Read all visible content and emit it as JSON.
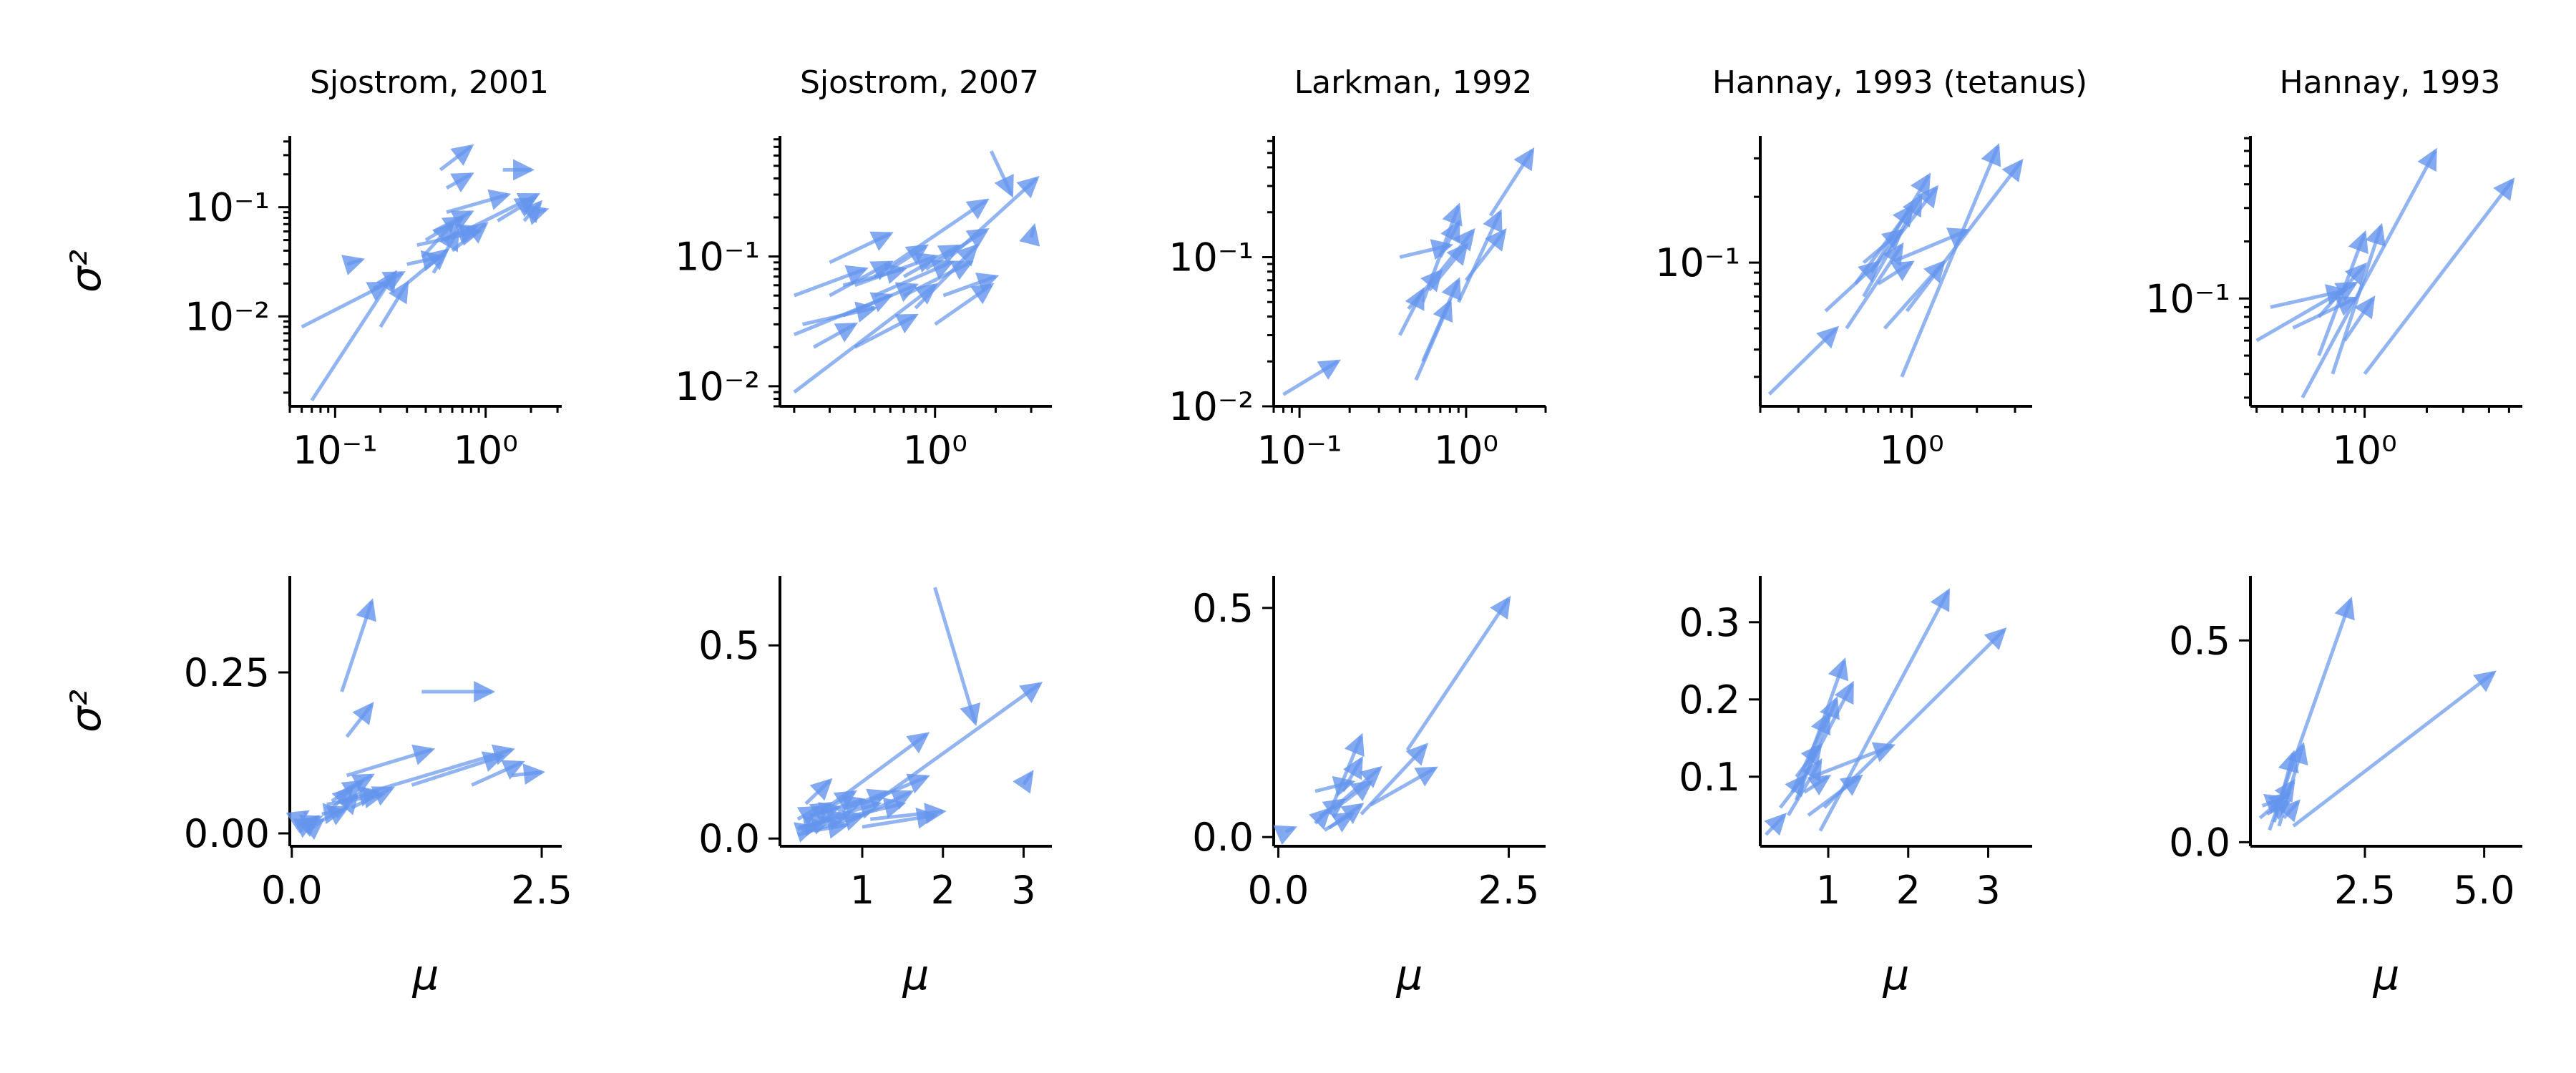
{
  "figure": {
    "ylabel": "σ²",
    "xlabel": "μ",
    "arrow_color": "#6495ED"
  },
  "chart_data": [
    {
      "type": "arrows",
      "row": "log",
      "title": "Sjostrom, 2001",
      "xscale": "log",
      "yscale": "log",
      "xlim": [
        0.05,
        3.2
      ],
      "ylim": [
        0.0015,
        0.45
      ],
      "xticks": [
        {
          "v": 0.1,
          "label": "10⁻¹"
        },
        {
          "v": 1,
          "label": "10⁰"
        }
      ],
      "yticks": [
        {
          "v": 0.01,
          "label": "10⁻²"
        },
        {
          "v": 0.1,
          "label": "10⁻¹"
        }
      ],
      "arrows": [
        [
          0.06,
          0.008,
          0.22,
          0.02
        ],
        [
          0.07,
          0.0017,
          0.25,
          0.025
        ],
        [
          0.12,
          0.03,
          0.15,
          0.033
        ],
        [
          0.2,
          0.008,
          0.3,
          0.02
        ],
        [
          0.18,
          0.018,
          0.28,
          0.025
        ],
        [
          0.3,
          0.02,
          0.55,
          0.04
        ],
        [
          0.38,
          0.035,
          0.6,
          0.07
        ],
        [
          0.4,
          0.05,
          0.7,
          0.08
        ],
        [
          0.45,
          0.06,
          0.8,
          0.09
        ],
        [
          0.5,
          0.05,
          0.85,
          0.065
        ],
        [
          0.55,
          0.09,
          1.4,
          0.13
        ],
        [
          0.6,
          0.04,
          1.0,
          0.07
        ],
        [
          0.45,
          0.025,
          0.65,
          0.06
        ],
        [
          0.5,
          0.22,
          0.8,
          0.36
        ],
        [
          1.3,
          0.22,
          2.0,
          0.22
        ],
        [
          1.2,
          0.075,
          2.1,
          0.12
        ],
        [
          0.8,
          0.065,
          2.2,
          0.13
        ],
        [
          1.8,
          0.075,
          2.3,
          0.11
        ],
        [
          2.2,
          0.09,
          2.5,
          0.095
        ],
        [
          0.35,
          0.045,
          0.9,
          0.06
        ],
        [
          0.3,
          0.03,
          0.5,
          0.035
        ],
        [
          0.55,
          0.15,
          0.8,
          0.2
        ]
      ]
    },
    {
      "type": "arrows",
      "row": "log",
      "title": "Sjostrom, 2007",
      "xscale": "log",
      "yscale": "log",
      "xlim": [
        0.17,
        3.8
      ],
      "ylim": [
        0.007,
        0.85
      ],
      "xticks": [
        {
          "v": 1,
          "label": "10⁰"
        }
      ],
      "yticks": [
        {
          "v": 0.01,
          "label": "10⁻²"
        },
        {
          "v": 0.1,
          "label": "10⁻¹"
        }
      ],
      "arrows": [
        [
          0.2,
          0.009,
          1.0,
          0.06
        ],
        [
          0.2,
          0.025,
          0.6,
          0.05
        ],
        [
          0.22,
          0.03,
          0.5,
          0.04
        ],
        [
          0.25,
          0.02,
          0.4,
          0.03
        ],
        [
          0.3,
          0.05,
          0.6,
          0.09
        ],
        [
          0.2,
          0.05,
          0.45,
          0.08
        ],
        [
          0.35,
          0.035,
          0.8,
          0.06
        ],
        [
          0.4,
          0.06,
          1.0,
          0.1
        ],
        [
          0.5,
          0.05,
          1.2,
          0.09
        ],
        [
          0.6,
          0.08,
          0.9,
          0.12
        ],
        [
          0.7,
          0.07,
          1.3,
          0.12
        ],
        [
          0.8,
          0.04,
          1.6,
          0.12
        ],
        [
          0.9,
          0.08,
          1.8,
          0.16
        ],
        [
          1.0,
          0.03,
          1.9,
          0.06
        ],
        [
          1.1,
          0.05,
          2.0,
          0.07
        ],
        [
          0.5,
          0.07,
          1.8,
          0.27
        ],
        [
          1.2,
          0.1,
          3.2,
          0.4
        ],
        [
          1.9,
          0.65,
          2.4,
          0.3
        ],
        [
          3.0,
          0.14,
          3.1,
          0.17
        ],
        [
          0.3,
          0.09,
          0.6,
          0.15
        ],
        [
          0.4,
          0.02,
          0.8,
          0.035
        ],
        [
          0.7,
          0.05,
          1.5,
          0.09
        ],
        [
          0.35,
          0.06,
          0.7,
          0.08
        ]
      ]
    },
    {
      "type": "arrows",
      "row": "log",
      "title": "Larkman, 1992",
      "xscale": "log",
      "yscale": "log",
      "xlim": [
        0.07,
        3.0
      ],
      "ylim": [
        0.01,
        0.65
      ],
      "xticks": [
        {
          "v": 0.1,
          "label": "10⁻¹"
        },
        {
          "v": 1,
          "label": "10⁰"
        }
      ],
      "yticks": [
        {
          "v": 0.01,
          "label": "10⁻²"
        },
        {
          "v": 0.1,
          "label": "10⁻¹"
        }
      ],
      "arrows": [
        [
          0.08,
          0.012,
          0.17,
          0.02
        ],
        [
          0.4,
          0.03,
          0.55,
          0.06
        ],
        [
          0.45,
          0.045,
          0.7,
          0.08
        ],
        [
          0.5,
          0.015,
          0.8,
          0.05
        ],
        [
          0.55,
          0.02,
          0.9,
          0.07
        ],
        [
          0.55,
          0.05,
          0.9,
          0.22
        ],
        [
          0.4,
          0.1,
          0.8,
          0.12
        ],
        [
          0.6,
          0.06,
          1.0,
          0.12
        ],
        [
          0.7,
          0.08,
          1.1,
          0.15
        ],
        [
          0.9,
          0.05,
          1.6,
          0.2
        ],
        [
          1.4,
          0.19,
          2.5,
          0.52
        ],
        [
          1.0,
          0.07,
          1.7,
          0.15
        ],
        [
          0.7,
          0.1,
          0.9,
          0.17
        ]
      ]
    },
    {
      "type": "arrows",
      "row": "log",
      "title": "Hannay, 1993 (tetanus)",
      "xscale": "log",
      "yscale": "log",
      "xlim": [
        0.2,
        3.6
      ],
      "ylim": [
        0.022,
        0.38
      ],
      "xticks": [
        {
          "v": 1,
          "label": "10⁰"
        }
      ],
      "yticks": [
        {
          "v": 0.1,
          "label": "10⁻¹"
        }
      ],
      "arrows": [
        [
          0.22,
          0.025,
          0.45,
          0.05
        ],
        [
          0.4,
          0.06,
          0.7,
          0.1
        ],
        [
          0.5,
          0.05,
          0.9,
          0.12
        ],
        [
          0.55,
          0.08,
          1.0,
          0.18
        ],
        [
          0.6,
          0.07,
          1.1,
          0.2
        ],
        [
          0.65,
          0.09,
          1.2,
          0.25
        ],
        [
          0.7,
          0.1,
          1.3,
          0.22
        ],
        [
          0.75,
          0.05,
          1.4,
          0.1
        ],
        [
          0.8,
          0.1,
          1.8,
          0.14
        ],
        [
          0.9,
          0.03,
          2.5,
          0.34
        ],
        [
          0.95,
          0.06,
          3.2,
          0.29
        ],
        [
          0.6,
          0.1,
          0.9,
          0.14
        ],
        [
          0.7,
          0.08,
          1.0,
          0.1
        ]
      ]
    },
    {
      "type": "arrows",
      "row": "log",
      "title": "Hannay, 1993",
      "xscale": "log",
      "yscale": "log",
      "xlim": [
        0.28,
        5.8
      ],
      "ylim": [
        0.027,
        0.72
      ],
      "xticks": [
        {
          "v": 1,
          "label": "10⁰"
        }
      ],
      "yticks": [
        {
          "v": 0.1,
          "label": "10⁻¹"
        }
      ],
      "arrows": [
        [
          0.3,
          0.06,
          0.9,
          0.12
        ],
        [
          0.35,
          0.09,
          0.8,
          0.11
        ],
        [
          0.45,
          0.07,
          0.9,
          0.1
        ],
        [
          0.5,
          0.03,
          2.2,
          0.6
        ],
        [
          0.6,
          0.05,
          1.0,
          0.22
        ],
        [
          0.7,
          0.04,
          1.2,
          0.24
        ],
        [
          0.8,
          0.06,
          1.1,
          0.1
        ],
        [
          1.0,
          0.04,
          5.2,
          0.42
        ],
        [
          0.6,
          0.08,
          1.0,
          0.15
        ]
      ]
    },
    {
      "type": "arrows",
      "row": "linear",
      "title": "",
      "xscale": "linear",
      "yscale": "linear",
      "xlim": [
        -0.02,
        2.7
      ],
      "ylim": [
        -0.02,
        0.4
      ],
      "xticks": [
        {
          "v": 0,
          "label": "0.0"
        },
        {
          "v": 2.5,
          "label": "2.5"
        }
      ],
      "yticks": [
        {
          "v": 0,
          "label": "0.00"
        },
        {
          "v": 0.25,
          "label": "0.25"
        }
      ],
      "arrows": [
        [
          0.06,
          0.008,
          0.22,
          0.02
        ],
        [
          0.07,
          0.0017,
          0.25,
          0.025
        ],
        [
          0.12,
          0.03,
          0.15,
          0.033
        ],
        [
          0.2,
          0.008,
          0.3,
          0.02
        ],
        [
          0.18,
          0.018,
          0.28,
          0.025
        ],
        [
          0.3,
          0.02,
          0.55,
          0.04
        ],
        [
          0.38,
          0.035,
          0.6,
          0.07
        ],
        [
          0.4,
          0.05,
          0.7,
          0.08
        ],
        [
          0.45,
          0.06,
          0.8,
          0.09
        ],
        [
          0.5,
          0.05,
          0.85,
          0.065
        ],
        [
          0.55,
          0.09,
          1.4,
          0.13
        ],
        [
          0.6,
          0.04,
          1.0,
          0.07
        ],
        [
          0.45,
          0.025,
          0.65,
          0.06
        ],
        [
          0.5,
          0.22,
          0.8,
          0.36
        ],
        [
          1.3,
          0.22,
          2.0,
          0.22
        ],
        [
          1.2,
          0.075,
          2.1,
          0.12
        ],
        [
          0.8,
          0.065,
          2.2,
          0.13
        ],
        [
          1.8,
          0.075,
          2.3,
          0.11
        ],
        [
          2.2,
          0.09,
          2.5,
          0.095
        ],
        [
          0.35,
          0.045,
          0.9,
          0.06
        ],
        [
          0.3,
          0.03,
          0.5,
          0.035
        ],
        [
          0.55,
          0.15,
          0.8,
          0.2
        ]
      ]
    },
    {
      "type": "arrows",
      "row": "linear",
      "title": "",
      "xscale": "linear",
      "yscale": "linear",
      "xlim": [
        -0.02,
        3.35
      ],
      "ylim": [
        -0.02,
        0.68
      ],
      "xticks": [
        {
          "v": 1,
          "label": "1"
        },
        {
          "v": 2,
          "label": "2"
        },
        {
          "v": 3,
          "label": "3"
        }
      ],
      "yticks": [
        {
          "v": 0,
          "label": "0.0"
        },
        {
          "v": 0.5,
          "label": "0.5"
        }
      ],
      "arrows": [
        [
          0.2,
          0.009,
          1.0,
          0.06
        ],
        [
          0.2,
          0.025,
          0.6,
          0.05
        ],
        [
          0.22,
          0.03,
          0.5,
          0.04
        ],
        [
          0.25,
          0.02,
          0.4,
          0.03
        ],
        [
          0.3,
          0.05,
          0.6,
          0.09
        ],
        [
          0.2,
          0.05,
          0.45,
          0.08
        ],
        [
          0.35,
          0.035,
          0.8,
          0.06
        ],
        [
          0.4,
          0.06,
          1.0,
          0.1
        ],
        [
          0.5,
          0.05,
          1.2,
          0.09
        ],
        [
          0.6,
          0.08,
          0.9,
          0.12
        ],
        [
          0.7,
          0.07,
          1.3,
          0.12
        ],
        [
          0.8,
          0.04,
          1.6,
          0.12
        ],
        [
          0.9,
          0.08,
          1.8,
          0.16
        ],
        [
          1.0,
          0.03,
          1.9,
          0.06
        ],
        [
          1.1,
          0.05,
          2.0,
          0.07
        ],
        [
          0.5,
          0.07,
          1.8,
          0.27
        ],
        [
          1.2,
          0.1,
          3.2,
          0.4
        ],
        [
          1.9,
          0.65,
          2.4,
          0.3
        ],
        [
          3.0,
          0.14,
          3.1,
          0.17
        ],
        [
          0.3,
          0.09,
          0.6,
          0.15
        ],
        [
          0.4,
          0.02,
          0.8,
          0.035
        ],
        [
          0.7,
          0.05,
          1.5,
          0.09
        ],
        [
          0.35,
          0.06,
          0.7,
          0.08
        ]
      ]
    },
    {
      "type": "arrows",
      "row": "linear",
      "title": "",
      "xscale": "linear",
      "yscale": "linear",
      "xlim": [
        -0.05,
        2.9
      ],
      "ylim": [
        -0.02,
        0.57
      ],
      "xticks": [
        {
          "v": 0,
          "label": "0.0"
        },
        {
          "v": 2.5,
          "label": "2.5"
        }
      ],
      "yticks": [
        {
          "v": 0,
          "label": "0.0"
        },
        {
          "v": 0.5,
          "label": "0.5"
        }
      ],
      "arrows": [
        [
          0.08,
          0.012,
          0.17,
          0.02
        ],
        [
          0.4,
          0.03,
          0.55,
          0.06
        ],
        [
          0.45,
          0.045,
          0.7,
          0.08
        ],
        [
          0.5,
          0.015,
          0.8,
          0.05
        ],
        [
          0.55,
          0.02,
          0.9,
          0.07
        ],
        [
          0.55,
          0.05,
          0.9,
          0.22
        ],
        [
          0.4,
          0.1,
          0.8,
          0.12
        ],
        [
          0.6,
          0.06,
          1.0,
          0.12
        ],
        [
          0.7,
          0.08,
          1.1,
          0.15
        ],
        [
          0.9,
          0.05,
          1.6,
          0.2
        ],
        [
          1.4,
          0.19,
          2.5,
          0.52
        ],
        [
          1.0,
          0.07,
          1.7,
          0.15
        ],
        [
          0.7,
          0.1,
          0.9,
          0.17
        ]
      ]
    },
    {
      "type": "arrows",
      "row": "linear",
      "title": "",
      "xscale": "linear",
      "yscale": "linear",
      "xlim": [
        0.15,
        3.55
      ],
      "ylim": [
        0.01,
        0.36
      ],
      "xticks": [
        {
          "v": 1,
          "label": "1"
        },
        {
          "v": 2,
          "label": "2"
        },
        {
          "v": 3,
          "label": "3"
        }
      ],
      "yticks": [
        {
          "v": 0.1,
          "label": "0.1"
        },
        {
          "v": 0.2,
          "label": "0.2"
        },
        {
          "v": 0.3,
          "label": "0.3"
        }
      ],
      "arrows": [
        [
          0.22,
          0.025,
          0.45,
          0.05
        ],
        [
          0.4,
          0.06,
          0.7,
          0.1
        ],
        [
          0.5,
          0.05,
          0.9,
          0.12
        ],
        [
          0.55,
          0.08,
          1.0,
          0.18
        ],
        [
          0.6,
          0.07,
          1.1,
          0.2
        ],
        [
          0.65,
          0.09,
          1.2,
          0.25
        ],
        [
          0.7,
          0.1,
          1.3,
          0.22
        ],
        [
          0.75,
          0.05,
          1.4,
          0.1
        ],
        [
          0.8,
          0.1,
          1.8,
          0.14
        ],
        [
          0.9,
          0.03,
          2.5,
          0.34
        ],
        [
          0.95,
          0.06,
          3.2,
          0.29
        ],
        [
          0.6,
          0.1,
          0.9,
          0.14
        ],
        [
          0.7,
          0.08,
          1.0,
          0.1
        ]
      ]
    },
    {
      "type": "arrows",
      "row": "linear",
      "title": "",
      "xscale": "linear",
      "yscale": "linear",
      "xlim": [
        0.1,
        5.8
      ],
      "ylim": [
        -0.01,
        0.66
      ],
      "xticks": [
        {
          "v": 2.5,
          "label": "2.5"
        },
        {
          "v": 5,
          "label": "5.0"
        }
      ],
      "yticks": [
        {
          "v": 0,
          "label": "0.0"
        },
        {
          "v": 0.5,
          "label": "0.5"
        }
      ],
      "arrows": [
        [
          0.3,
          0.06,
          0.9,
          0.12
        ],
        [
          0.35,
          0.09,
          0.8,
          0.11
        ],
        [
          0.45,
          0.07,
          0.9,
          0.1
        ],
        [
          0.5,
          0.03,
          2.2,
          0.6
        ],
        [
          0.6,
          0.05,
          1.0,
          0.22
        ],
        [
          0.7,
          0.04,
          1.2,
          0.24
        ],
        [
          0.8,
          0.06,
          1.1,
          0.1
        ],
        [
          1.0,
          0.04,
          5.2,
          0.42
        ],
        [
          0.6,
          0.08,
          1.0,
          0.15
        ]
      ]
    }
  ]
}
